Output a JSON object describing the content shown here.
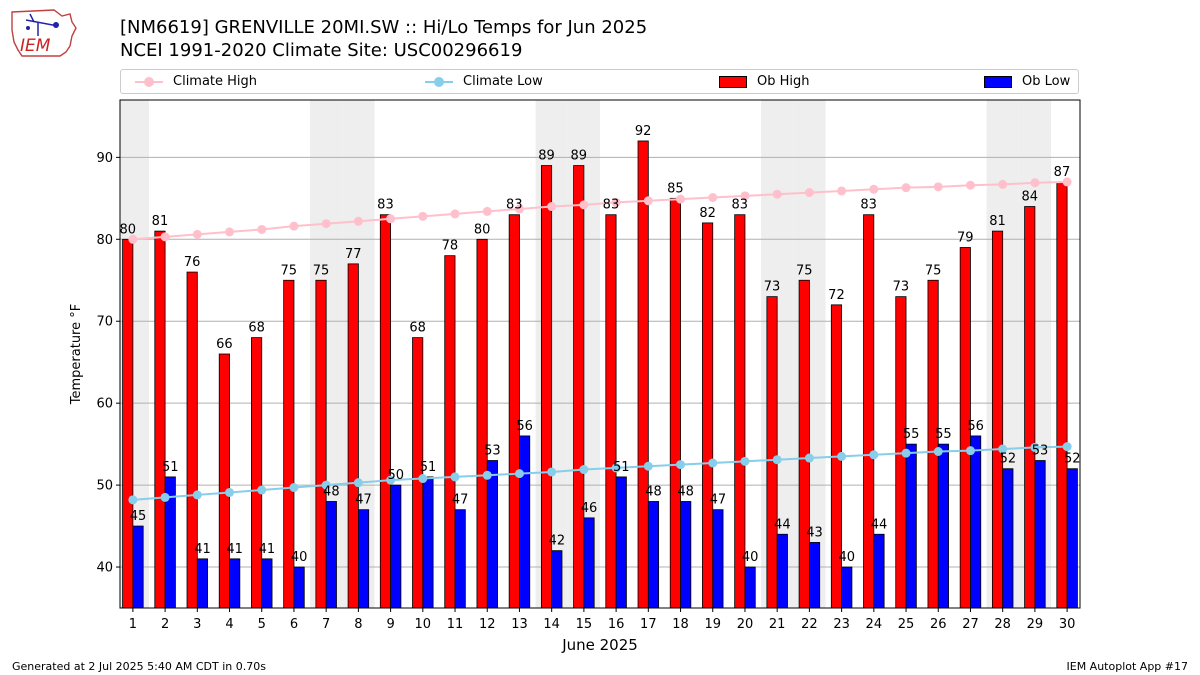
{
  "header": {
    "title_line1": "[NM6619] GRENVILLE 20MI.SW :: Hi/Lo Temps for Jun 2025",
    "title_line2": "NCEI 1991-2020 Climate Site: USC00296619",
    "logo_text": "IEM"
  },
  "footer": {
    "left": "Generated at 2 Jul 2025 5:40 AM CDT in 0.70s",
    "right": "IEM Autoplot App #17"
  },
  "legend": [
    {
      "label": "Climate High",
      "kind": "line",
      "color": "#ffc0cb"
    },
    {
      "label": "Climate Low",
      "kind": "line",
      "color": "#87ceeb"
    },
    {
      "label": "Ob High",
      "kind": "bar",
      "color": "#ff0000"
    },
    {
      "label": "Ob Low",
      "kind": "bar",
      "color": "#0000ff"
    }
  ],
  "chart_data": {
    "type": "bar",
    "xlabel": "June 2025",
    "ylabel": "Temperature °F",
    "ylim": [
      35,
      97
    ],
    "yticks": [
      40,
      50,
      60,
      70,
      80,
      90
    ],
    "grid": true,
    "x": [
      1,
      2,
      3,
      4,
      5,
      6,
      7,
      8,
      9,
      10,
      11,
      12,
      13,
      14,
      15,
      16,
      17,
      18,
      19,
      20,
      21,
      22,
      23,
      24,
      25,
      26,
      27,
      28,
      29,
      30
    ],
    "weekend_shading_days": [
      1,
      7,
      8,
      14,
      15,
      21,
      22,
      28,
      29
    ],
    "series": [
      {
        "name": "Ob High",
        "kind": "bar",
        "color": "#ff0000",
        "values": [
          80,
          81,
          76,
          66,
          68,
          75,
          75,
          77,
          83,
          68,
          78,
          80,
          83,
          89,
          89,
          83,
          92,
          85,
          82,
          83,
          73,
          75,
          72,
          83,
          73,
          75,
          79,
          81,
          84,
          87
        ]
      },
      {
        "name": "Ob Low",
        "kind": "bar",
        "color": "#0000ff",
        "values": [
          45,
          51,
          41,
          41,
          41,
          40,
          48,
          47,
          50,
          51,
          47,
          53,
          56,
          42,
          46,
          51,
          48,
          48,
          47,
          40,
          44,
          43,
          40,
          44,
          55,
          55,
          56,
          52,
          53,
          52
        ]
      },
      {
        "name": "Climate High",
        "kind": "line",
        "color": "#ffc0cb",
        "values": [
          80.0,
          80.3,
          80.6,
          80.9,
          81.2,
          81.6,
          81.9,
          82.2,
          82.5,
          82.8,
          83.1,
          83.4,
          83.7,
          84.0,
          84.2,
          84.5,
          84.7,
          84.9,
          85.1,
          85.3,
          85.5,
          85.7,
          85.9,
          86.1,
          86.3,
          86.4,
          86.6,
          86.7,
          86.9,
          87.0
        ]
      },
      {
        "name": "Climate Low",
        "kind": "line",
        "color": "#87ceeb",
        "values": [
          48.2,
          48.5,
          48.8,
          49.1,
          49.4,
          49.7,
          50.0,
          50.3,
          50.6,
          50.8,
          51.0,
          51.2,
          51.4,
          51.6,
          51.9,
          52.1,
          52.3,
          52.5,
          52.7,
          52.9,
          53.1,
          53.3,
          53.5,
          53.7,
          53.9,
          54.1,
          54.2,
          54.4,
          54.6,
          54.7
        ]
      }
    ]
  }
}
